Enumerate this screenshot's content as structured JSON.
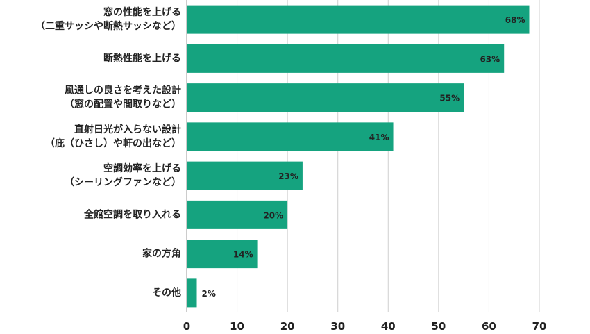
{
  "chart_data": {
    "type": "bar",
    "orientation": "horizontal",
    "categories": [
      [
        "窓の性能を上げる",
        "（二重サッシや断熱サッシなど）"
      ],
      [
        "断熱性能を上げる"
      ],
      [
        "風通しの良さを考えた設計",
        "（窓の配置や間取りなど）"
      ],
      [
        "直射日光が入らない設計",
        "（庇（ひさし）や軒の出など）"
      ],
      [
        "空調効率を上げる",
        "（シーリングファンなど）"
      ],
      [
        "全館空調を取り入れる"
      ],
      [
        "家の方角"
      ],
      [
        "その他"
      ]
    ],
    "values": [
      68,
      63,
      55,
      41,
      23,
      20,
      14,
      2
    ],
    "value_labels": [
      "68%",
      "63%",
      "55%",
      "41%",
      "23%",
      "20%",
      "14%",
      "2%"
    ],
    "xlim": [
      0,
      70
    ],
    "x_ticks": [
      0,
      10,
      20,
      30,
      40,
      50,
      60,
      70
    ],
    "grid": true,
    "bar_color": "#15a37f",
    "title": "",
    "xlabel": "",
    "ylabel": ""
  }
}
